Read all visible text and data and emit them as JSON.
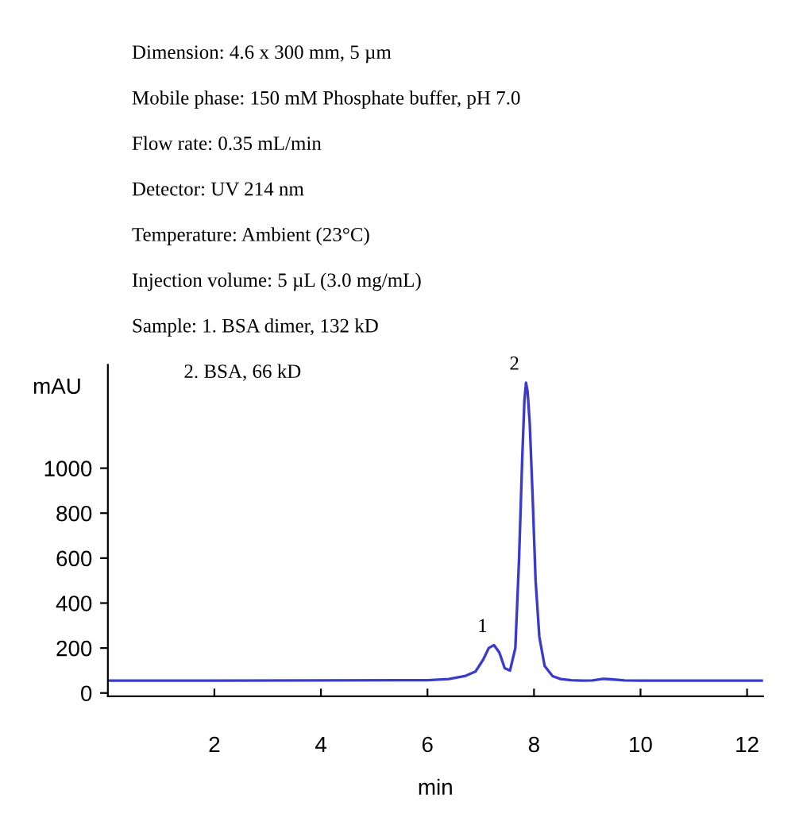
{
  "chart_data": {
    "type": "line",
    "xlabel": "min",
    "ylabel": "mAU",
    "x": [
      0,
      2,
      4,
      6,
      6.4,
      6.7,
      6.9,
      7.05,
      7.15,
      7.25,
      7.35,
      7.45,
      7.55,
      7.65,
      7.72,
      7.78,
      7.82,
      7.85,
      7.88,
      7.92,
      7.97,
      8.03,
      8.1,
      8.2,
      8.35,
      8.5,
      8.7,
      8.9,
      9.1,
      9.3,
      9.5,
      9.7,
      10,
      12,
      12.3
    ],
    "series": [
      {
        "color": "#3a3acc",
        "values": [
          55,
          55,
          56,
          57,
          62,
          75,
          95,
          150,
          200,
          213,
          180,
          110,
          100,
          200,
          600,
          1050,
          1300,
          1380,
          1340,
          1200,
          900,
          500,
          250,
          120,
          75,
          62,
          57,
          55,
          56,
          63,
          60,
          56,
          55,
          55,
          55
        ]
      }
    ],
    "xlim": [
      0,
      12.3
    ],
    "ylim": [
      -15,
      1460
    ],
    "xticks": [
      2,
      4,
      6,
      8,
      10,
      12
    ],
    "yticks": [
      0,
      200,
      400,
      600,
      800,
      1000
    ],
    "grid": false,
    "legend": false,
    "annotations": [
      "Dimension: 4.6 x 300 mm, 5 µm",
      "Mobile phase: 150 mM Phosphate buffer, pH 7.0",
      "Flow rate: 0.35 mL/min",
      "Detector: UV 214 nm",
      "Temperature: Ambient (23°C)",
      "Injection volume: 5 µL (3.0 mg/mL)",
      "Sample: 1. BSA dimer, 132 kD",
      "2. BSA, 66 kD",
      {
        "text": "1",
        "x": 7.25,
        "y": 213
      },
      {
        "text": "2",
        "x": 7.85,
        "y": 1380
      }
    ]
  }
}
